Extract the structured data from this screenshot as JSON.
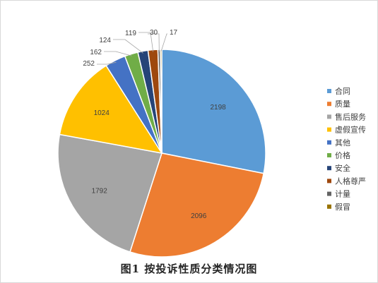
{
  "chart_data": {
    "type": "pie",
    "title": "图1  按投诉性质分类情况图",
    "categories": [
      "合同",
      "质量",
      "售后服务",
      "虚假宣传",
      "其他",
      "价格",
      "安全",
      "人格尊严",
      "计量",
      "假冒"
    ],
    "values": [
      2198,
      2096,
      1792,
      1024,
      252,
      162,
      124,
      119,
      30,
      17
    ],
    "data_labels": [
      "2198",
      "2096",
      "1792",
      "1024",
      "252",
      "162",
      "124",
      "119",
      "30",
      "17"
    ],
    "colors": [
      "#5b9bd5",
      "#ed7d31",
      "#a5a5a5",
      "#ffc000",
      "#4472c4",
      "#70ad47",
      "#264478",
      "#9e480e",
      "#636363",
      "#997300"
    ],
    "legend_position": "right",
    "start_angle_deg": 0,
    "direction": "clockwise"
  }
}
